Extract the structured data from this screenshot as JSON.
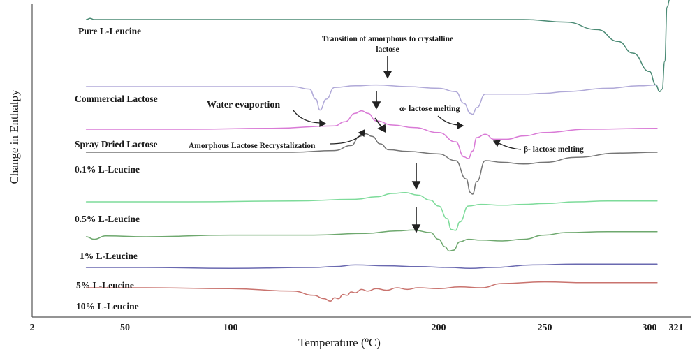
{
  "chart_data": {
    "type": "line",
    "xlabel": "Temperature (ºC)",
    "ylabel": "Change in Enthalpy",
    "xlim": [
      2,
      321
    ],
    "x_ticks": [
      {
        "value": 2,
        "label": "2"
      },
      {
        "value": 50,
        "label": "50"
      },
      {
        "value": 100,
        "label": "100"
      },
      {
        "value": 200,
        "label": "200"
      },
      {
        "value": 250,
        "label": "250"
      },
      {
        "value": 300,
        "label": "300"
      },
      {
        "value": 321,
        "label": "321"
      }
    ],
    "series": [
      {
        "name": "Pure L-Leucine",
        "color": "#4a8a74",
        "baseline": 0,
        "x": [
          30,
          32,
          34,
          60,
          100,
          150,
          200,
          240,
          260,
          275,
          285,
          292,
          300,
          305,
          308,
          310,
          312,
          314,
          316,
          318,
          320,
          321
        ],
        "y": [
          0,
          0.15,
          0,
          0,
          0,
          0,
          0,
          0,
          -0.3,
          -1.2,
          -2.6,
          -4,
          -6.2,
          -7.8,
          -8.6,
          -8.3,
          -5,
          1.5,
          2.4,
          2.5,
          2.5,
          2.5
        ]
      },
      {
        "name": "Commercial Lactose",
        "color": "#b0a9d8",
        "baseline": 0,
        "x": [
          30,
          60,
          100,
          130,
          138,
          141,
          143,
          146,
          150,
          160,
          170,
          185,
          200,
          208,
          212,
          215,
          216,
          218,
          222,
          230,
          240,
          250,
          260,
          280,
          295,
          306
        ],
        "y": [
          0,
          0,
          0,
          0,
          -0.3,
          -1.5,
          -2.8,
          -1.5,
          -0.1,
          0.1,
          0.2,
          0,
          -0.2,
          -0.6,
          -2,
          -3.2,
          -3.3,
          -2.5,
          -0.9,
          -0.9,
          -0.9,
          -0.8,
          -0.6,
          -0.2,
          0.1,
          0.2
        ]
      },
      {
        "name": "",
        "color": "#d97ad6",
        "baseline": 0,
        "x": [
          30,
          80,
          120,
          150,
          155,
          160,
          163,
          166,
          170,
          178,
          188,
          200,
          208,
          212,
          214,
          216,
          218,
          222,
          226,
          232,
          240,
          250,
          270,
          306
        ],
        "y": [
          0,
          0,
          0.1,
          0.4,
          0.9,
          1.9,
          2.2,
          1.9,
          1,
          0.5,
          0.2,
          -0.4,
          -1.5,
          -3.3,
          -3.5,
          -2.6,
          -1,
          -0.6,
          -1.2,
          -1.2,
          -0.8,
          -0.4,
          0,
          0.1
        ]
      },
      {
        "name": "Spray Dried Lactose",
        "color": "#757575",
        "baseline": 0,
        "x": [
          30,
          80,
          130,
          150,
          158,
          162,
          165,
          168,
          172,
          176,
          185,
          200,
          208,
          213,
          215,
          216,
          218,
          222,
          230,
          240,
          250,
          265,
          285,
          306
        ],
        "y": [
          0,
          0,
          0,
          0.2,
          0.8,
          1.9,
          2.2,
          1.9,
          1,
          0.3,
          0.1,
          -0.2,
          -1,
          -3.2,
          -4.8,
          -5,
          -3.5,
          -1,
          -1.2,
          -1.4,
          -1.2,
          -0.6,
          -0.1,
          0
        ]
      },
      {
        "name": "0.1% L-Leucine",
        "color": "#7ddb9a",
        "baseline": 0,
        "x": [
          30,
          80,
          130,
          160,
          170,
          178,
          184,
          190,
          196,
          200,
          204,
          206,
          208,
          210,
          214,
          220,
          230,
          240,
          250,
          265,
          280,
          306
        ],
        "y": [
          0,
          0,
          0.1,
          0.3,
          0.6,
          1,
          1.1,
          0.8,
          0.2,
          -0.5,
          -2,
          -3.3,
          -3.4,
          -2.4,
          -0.5,
          -0.3,
          -0.4,
          -0.3,
          -0.2,
          0,
          0.1,
          0.1
        ]
      },
      {
        "name": "0.5% L-Leucine",
        "color": "#6ea86e",
        "baseline": 0,
        "x": [
          30,
          34,
          40,
          60,
          100,
          140,
          165,
          180,
          188,
          196,
          200,
          203,
          205,
          207,
          210,
          214,
          220,
          230,
          240,
          250,
          260,
          280,
          306
        ],
        "y": [
          0,
          -0.3,
          0.1,
          0,
          0.2,
          0.2,
          0.4,
          0.7,
          0.8,
          0.5,
          -0.3,
          -1.2,
          -1.7,
          -1.6,
          -0.6,
          -0.3,
          -0.4,
          -0.5,
          -0.3,
          0.2,
          0.5,
          0.6,
          0.6
        ]
      },
      {
        "name": "5% L-Leucine",
        "color": "#6a69b0",
        "baseline": 0,
        "x": [
          30,
          60,
          100,
          140,
          150,
          160,
          175,
          190,
          205,
          215,
          225,
          245,
          265,
          285,
          306
        ],
        "y": [
          0,
          0,
          -0.1,
          0,
          0.1,
          0.3,
          0.2,
          0.1,
          0,
          -0.1,
          0,
          0.3,
          0.4,
          0.4,
          0.4
        ]
      },
      {
        "name": "10% L-Leucine",
        "color": "#c9736e",
        "baseline": 0,
        "x": [
          30,
          60,
          100,
          130,
          140,
          145,
          148,
          150,
          152,
          154,
          156,
          158,
          160,
          163,
          166,
          170,
          175,
          180,
          185,
          190,
          200,
          210,
          220,
          230,
          250,
          270,
          306
        ],
        "y": [
          0,
          0,
          -0.1,
          -0.4,
          -0.9,
          -1.3,
          -1.6,
          -1.2,
          -1.3,
          -0.8,
          -0.9,
          -0.5,
          -0.6,
          -0.2,
          -0.4,
          -0.1,
          -0.3,
          0,
          -0.2,
          0,
          -0.1,
          0.1,
          0,
          0.5,
          0.7,
          0.6,
          0.6
        ]
      }
    ],
    "series_labels": [
      {
        "text": "Pure L-Leucine"
      },
      {
        "text": "Commercial Lactose"
      },
      {
        "text": "Spray Dried Lactose"
      },
      {
        "text": "0.1% L-Leucine"
      },
      {
        "text": "0.5% L-Leucine"
      },
      {
        "text": "1% L-Leucine"
      },
      {
        "text": "5% L-Leucine"
      },
      {
        "text": "10% L-Leucine"
      }
    ],
    "annotations": [
      {
        "text_lines": [
          "Transition of amorphous to crystalline",
          "lactose"
        ]
      },
      {
        "text": "Water evaportion"
      },
      {
        "text": "α- lactose melting"
      },
      {
        "text": "Amorphous Lactose Recrystalization"
      },
      {
        "text": "β- lactose melting"
      }
    ],
    "grid": false,
    "legend": "none"
  }
}
